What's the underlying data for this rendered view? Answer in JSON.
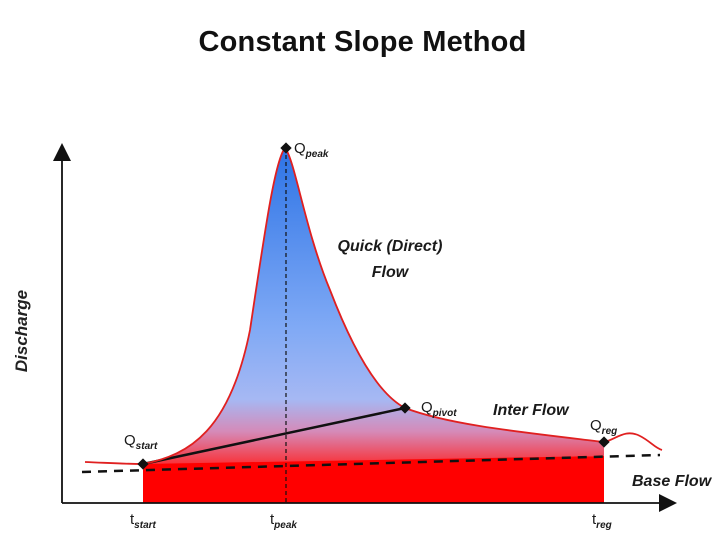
{
  "title": "Constant Slope Method",
  "y_axis_label": "Discharge",
  "regions": {
    "quick_flow": {
      "line1": "Quick (Direct)",
      "line2": "Flow"
    },
    "inter_flow": "Inter Flow",
    "base_flow": "Base Flow"
  },
  "points": {
    "q_start": {
      "main": "Q",
      "sub": "start"
    },
    "q_peak": {
      "main": "Q",
      "sub": "peak"
    },
    "q_pivot": {
      "main": "Q",
      "sub": "pivot"
    },
    "q_reg": {
      "main": "Q",
      "sub": "reg"
    }
  },
  "x_ticks": {
    "t_start": {
      "main": "t",
      "sub": "start"
    },
    "t_peak": {
      "main": "t",
      "sub": "peak"
    },
    "t_reg": {
      "main": "t",
      "sub": "reg"
    }
  },
  "colors": {
    "quick_flow_top": "#2e74e6",
    "quick_flow_bottom": "#8eb6ff",
    "inter_flow_top": "#c9a7f0",
    "inter_flow_bottom": "#ff1a1a",
    "base_flow": "#ff0000",
    "hydrograph_line": "#e02020",
    "axis": "#111111"
  }
}
